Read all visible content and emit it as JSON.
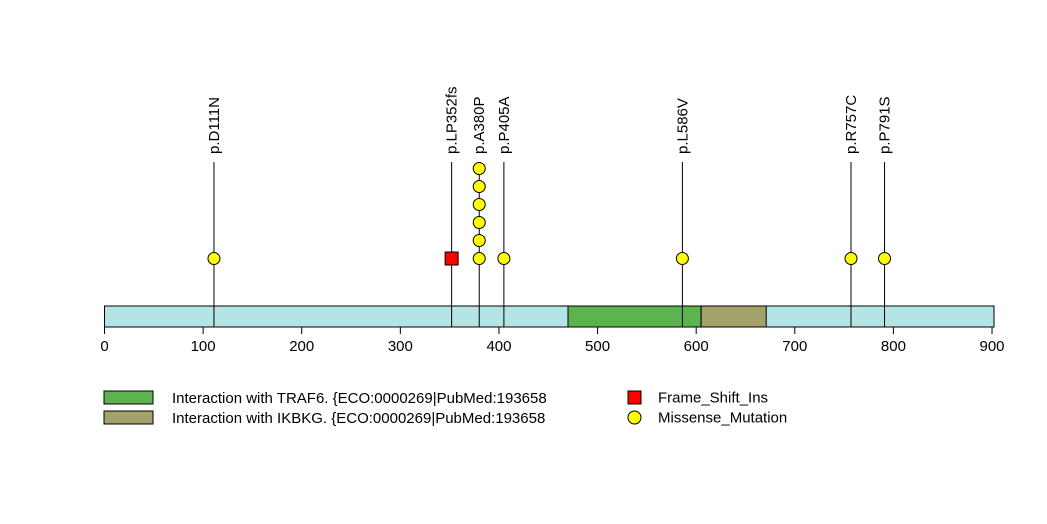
{
  "chart_data": {
    "type": "lollipop",
    "title": "",
    "xlabel": "",
    "ylabel": "",
    "xlim": [
      0,
      902
    ],
    "x_ticks": [
      0,
      100,
      200,
      300,
      400,
      500,
      600,
      700,
      800,
      900
    ],
    "protein_length": 902,
    "backbone_color": "#b4e4e4",
    "domains": [
      {
        "name": "Interaction with TRAF6. {ECO:0000269|PubMed:193658",
        "start": 470,
        "end": 605,
        "color": "#5db34f"
      },
      {
        "name": "Interaction with IKBKG. {ECO:0000269|PubMed:193658",
        "start": 605,
        "end": 671,
        "color": "#a3a26a"
      }
    ],
    "mutations": [
      {
        "label": "p.D111N",
        "position": 111,
        "count": 1,
        "type": "Missense_Mutation"
      },
      {
        "label": "p.LP352fs",
        "position": 352,
        "count": 1,
        "type": "Frame_Shift_Ins"
      },
      {
        "label": "p.A380P",
        "position": 380,
        "count": 6,
        "type": "Missense_Mutation"
      },
      {
        "label": "p.P405A",
        "position": 405,
        "count": 1,
        "type": "Missense_Mutation"
      },
      {
        "label": "p.L586V",
        "position": 586,
        "count": 1,
        "type": "Missense_Mutation"
      },
      {
        "label": "p.R757C",
        "position": 757,
        "count": 1,
        "type": "Missense_Mutation"
      },
      {
        "label": "p.P791S",
        "position": 791,
        "count": 1,
        "type": "Missense_Mutation"
      }
    ],
    "mutation_types": [
      {
        "name": "Frame_Shift_Ins",
        "shape": "square",
        "color": "#ff0000"
      },
      {
        "name": "Missense_Mutation",
        "shape": "circle",
        "color": "#ffff00"
      }
    ],
    "legend_placement": "bottom"
  }
}
